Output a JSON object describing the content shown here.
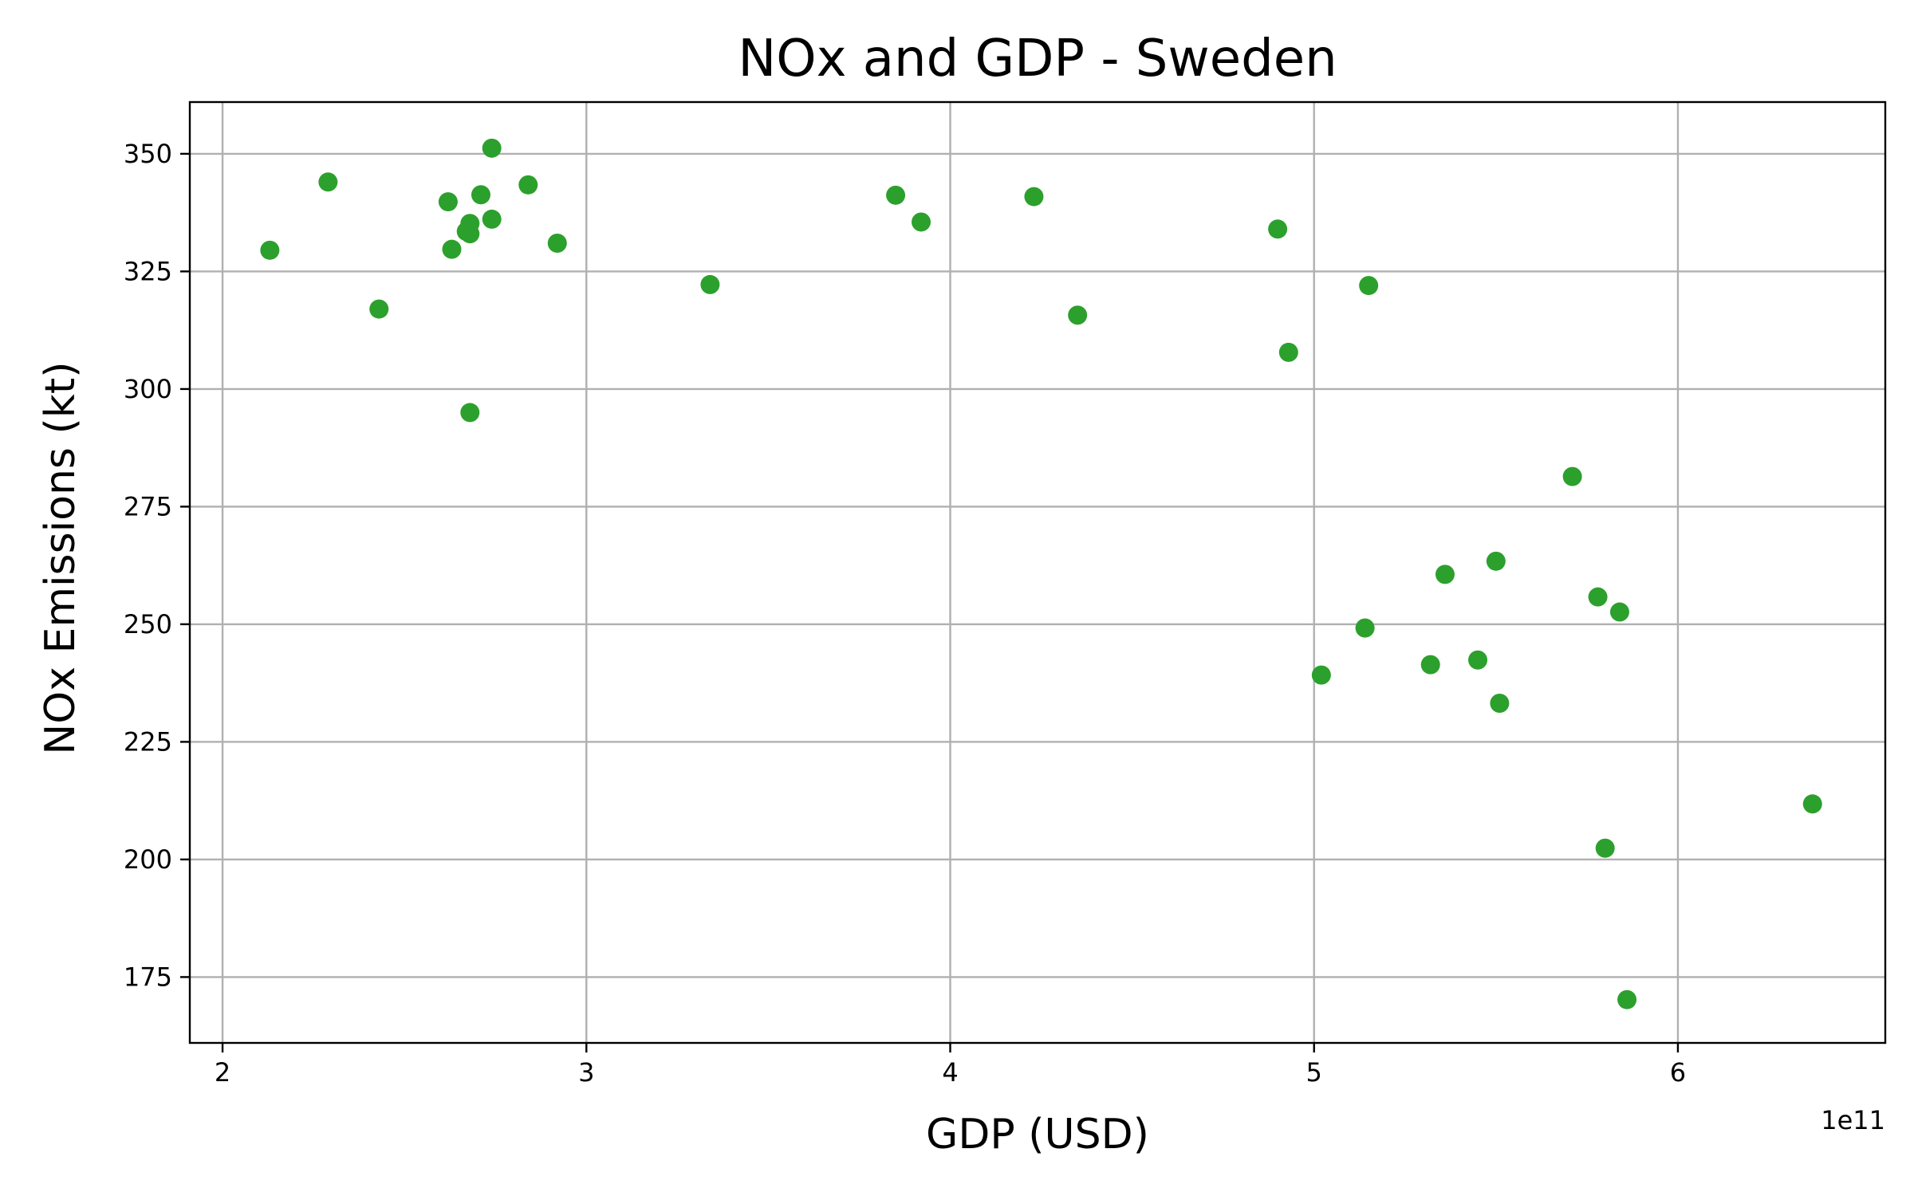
{
  "chart_data": {
    "type": "scatter",
    "title": "NOx and GDP - Sweden",
    "xlabel": "GDP (USD)",
    "ylabel": "NOx Emissions (kt)",
    "x_offset_label": "1e11",
    "x_scale": 100000000000,
    "xlim": [
      1.91,
      6.57
    ],
    "ylim": [
      161,
      361
    ],
    "xticks": [
      2,
      3,
      4,
      5,
      6
    ],
    "xtick_labels": [
      "2",
      "3",
      "4",
      "5",
      "6"
    ],
    "yticks": [
      175,
      200,
      225,
      250,
      275,
      300,
      325,
      350
    ],
    "ytick_labels": [
      "175",
      "200",
      "225",
      "250",
      "275",
      "300",
      "325",
      "350"
    ],
    "grid": true,
    "marker_color": "#2ca02c",
    "series": [
      {
        "x": [
          2.13,
          2.29,
          2.43,
          2.62,
          2.63,
          2.67,
          2.68,
          2.68,
          2.71,
          2.74,
          2.74,
          2.84,
          2.92,
          3.34,
          3.85,
          3.92,
          4.23,
          4.35,
          4.9,
          4.93,
          5.02,
          5.14,
          5.15,
          5.32,
          5.36,
          5.45,
          5.5,
          5.51,
          5.71,
          5.78,
          5.8,
          5.84,
          5.86,
          6.37,
          2.68
        ],
        "y": [
          329.5,
          344.0,
          317.0,
          339.8,
          329.7,
          333.5,
          335.2,
          295.0,
          341.3,
          351.2,
          336.1,
          343.4,
          331.0,
          322.2,
          341.2,
          335.5,
          340.9,
          315.7,
          334.0,
          307.8,
          239.2,
          249.2,
          322.0,
          241.4,
          260.6,
          242.4,
          263.4,
          233.2,
          281.4,
          255.8,
          202.4,
          252.6,
          170.2,
          211.8,
          333.0
        ]
      }
    ]
  }
}
